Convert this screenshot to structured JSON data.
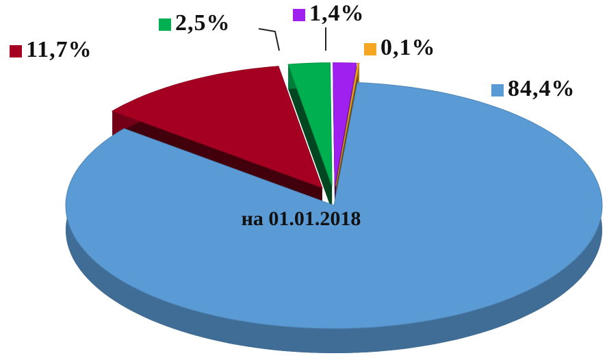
{
  "chart_data": {
    "type": "pie",
    "title": "на 01.01.2018",
    "categories": null,
    "values": [
      84.4,
      11.7,
      2.5,
      1.4,
      0.1
    ],
    "value_labels": [
      "84,4%",
      "11,7%",
      "2,5%",
      "1,4%",
      "0,1%"
    ],
    "colors": [
      "#5b9bd5",
      "#a50021",
      "#00b050",
      "#a020f0",
      "#f5a623"
    ]
  }
}
